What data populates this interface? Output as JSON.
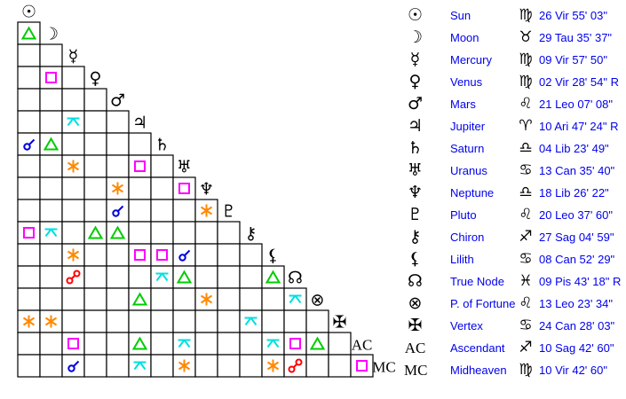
{
  "planets": [
    {
      "name": "Sun",
      "glyph": "☉",
      "sign": "♍",
      "position": "26 Vir 55' 03\""
    },
    {
      "name": "Moon",
      "glyph": "☽",
      "sign": "♉",
      "position": "29 Tau 35' 37\""
    },
    {
      "name": "Mercury",
      "glyph": "☿",
      "sign": "♍",
      "position": "09 Vir 57' 50\""
    },
    {
      "name": "Venus",
      "glyph": "♀",
      "sign": "♍",
      "position": "02 Vir 28' 54\" R"
    },
    {
      "name": "Mars",
      "glyph": "♂",
      "sign": "♌",
      "position": "21 Leo 07' 08\""
    },
    {
      "name": "Jupiter",
      "glyph": "♃",
      "sign": "♈",
      "position": "10 Ari 47' 24\" R"
    },
    {
      "name": "Saturn",
      "glyph": "♄",
      "sign": "♎",
      "position": "04 Lib 23' 49\""
    },
    {
      "name": "Uranus",
      "glyph": "♅",
      "sign": "♋",
      "position": "13 Can 35' 40\""
    },
    {
      "name": "Neptune",
      "glyph": "♆",
      "sign": "♎",
      "position": "18 Lib 26' 22\""
    },
    {
      "name": "Pluto",
      "glyph": "♇",
      "sign": "♌",
      "position": "20 Leo 37' 60\""
    },
    {
      "name": "Chiron",
      "glyph": "⚷",
      "sign": "♐",
      "position": "27 Sag 04' 59\""
    },
    {
      "name": "Lilith",
      "glyph": "⚸",
      "sign": "♋",
      "position": "08 Can 52' 29\""
    },
    {
      "name": "True Node",
      "glyph": "☊",
      "sign": "♓",
      "position": "09 Pis 43' 18\" R"
    },
    {
      "name": "P. of Fortune",
      "glyph": "⊗",
      "sign": "♌",
      "position": "13 Leo 23' 34\""
    },
    {
      "name": "Vertex",
      "glyph": "✠",
      "sign": "♋",
      "position": "24 Can 28' 03\""
    },
    {
      "name": "Ascendant",
      "glyph": "AC",
      "sign": "♐",
      "position": "10 Sag 42' 60\""
    },
    {
      "name": "Midheaven",
      "glyph": "MC",
      "sign": "♍",
      "position": "10 Vir 42' 60\""
    }
  ],
  "aspect_colors": {
    "trine": "#00cc00",
    "square": "#ff00ff",
    "sextile": "#ff8800",
    "conjunction": "#0000dd",
    "opposition": "#ff0000",
    "quincunx": "#00e0e0"
  },
  "aspects": [
    {
      "a": "Moon",
      "b": "Sun",
      "type": "trine"
    },
    {
      "a": "Venus",
      "b": "Moon",
      "type": "square"
    },
    {
      "a": "Jupiter",
      "b": "Mercury",
      "type": "quincunx"
    },
    {
      "a": "Saturn",
      "b": "Sun",
      "type": "conjunction"
    },
    {
      "a": "Saturn",
      "b": "Moon",
      "type": "trine"
    },
    {
      "a": "Uranus",
      "b": "Mercury",
      "type": "sextile"
    },
    {
      "a": "Uranus",
      "b": "Jupiter",
      "type": "square"
    },
    {
      "a": "Neptune",
      "b": "Mars",
      "type": "sextile"
    },
    {
      "a": "Neptune",
      "b": "Uranus",
      "type": "square"
    },
    {
      "a": "Pluto",
      "b": "Mars",
      "type": "conjunction"
    },
    {
      "a": "Pluto",
      "b": "Neptune",
      "type": "sextile"
    },
    {
      "a": "Chiron",
      "b": "Sun",
      "type": "square"
    },
    {
      "a": "Chiron",
      "b": "Moon",
      "type": "quincunx"
    },
    {
      "a": "Chiron",
      "b": "Venus",
      "type": "trine"
    },
    {
      "a": "Chiron",
      "b": "Mars",
      "type": "trine"
    },
    {
      "a": "Lilith",
      "b": "Mercury",
      "type": "sextile"
    },
    {
      "a": "Lilith",
      "b": "Jupiter",
      "type": "square"
    },
    {
      "a": "Lilith",
      "b": "Saturn",
      "type": "square"
    },
    {
      "a": "Lilith",
      "b": "Uranus",
      "type": "conjunction"
    },
    {
      "a": "True Node",
      "b": "Mercury",
      "type": "opposition"
    },
    {
      "a": "True Node",
      "b": "Saturn",
      "type": "quincunx"
    },
    {
      "a": "True Node",
      "b": "Uranus",
      "type": "trine"
    },
    {
      "a": "True Node",
      "b": "Lilith",
      "type": "trine"
    },
    {
      "a": "P. of Fortune",
      "b": "Jupiter",
      "type": "trine"
    },
    {
      "a": "P. of Fortune",
      "b": "Neptune",
      "type": "sextile"
    },
    {
      "a": "P. of Fortune",
      "b": "True Node",
      "type": "quincunx"
    },
    {
      "a": "Vertex",
      "b": "Sun",
      "type": "sextile"
    },
    {
      "a": "Vertex",
      "b": "Moon",
      "type": "sextile"
    },
    {
      "a": "Vertex",
      "b": "Chiron",
      "type": "quincunx"
    },
    {
      "a": "Ascendant",
      "b": "Mercury",
      "type": "square"
    },
    {
      "a": "Ascendant",
      "b": "Jupiter",
      "type": "trine"
    },
    {
      "a": "Ascendant",
      "b": "Uranus",
      "type": "quincunx"
    },
    {
      "a": "Ascendant",
      "b": "Lilith",
      "type": "quincunx"
    },
    {
      "a": "Ascendant",
      "b": "True Node",
      "type": "square"
    },
    {
      "a": "Ascendant",
      "b": "P. of Fortune",
      "type": "trine"
    },
    {
      "a": "Midheaven",
      "b": "Mercury",
      "type": "conjunction"
    },
    {
      "a": "Midheaven",
      "b": "Jupiter",
      "type": "quincunx"
    },
    {
      "a": "Midheaven",
      "b": "Uranus",
      "type": "sextile"
    },
    {
      "a": "Midheaven",
      "b": "Lilith",
      "type": "sextile"
    },
    {
      "a": "Midheaven",
      "b": "True Node",
      "type": "opposition"
    },
    {
      "a": "Midheaven",
      "b": "Ascendant",
      "type": "square"
    }
  ]
}
